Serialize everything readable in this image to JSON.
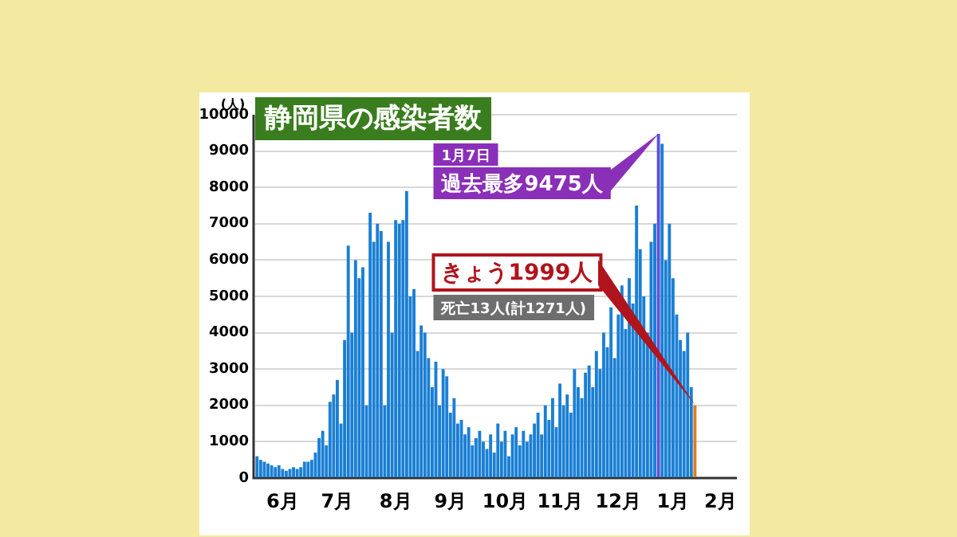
{
  "chart_data": {
    "type": "bar",
    "title": "静岡県の感染者数",
    "ylabel": "(人)",
    "categories": [
      null,
      null,
      null,
      null,
      null,
      null,
      null,
      "6月",
      null,
      null,
      null,
      null,
      null,
      null,
      null,
      null,
      null,
      null,
      null,
      null,
      null,
      null,
      "7月",
      null,
      null,
      null,
      null,
      null,
      null,
      null,
      null,
      null,
      null,
      null,
      null,
      null,
      null,
      null,
      "8月",
      null,
      null,
      null,
      null,
      null,
      null,
      null,
      null,
      null,
      null,
      null,
      null,
      null,
      null,
      "9月",
      null,
      null,
      null,
      null,
      null,
      null,
      null,
      null,
      null,
      null,
      null,
      null,
      null,
      null,
      "10月",
      null,
      null,
      null,
      null,
      null,
      null,
      null,
      null,
      null,
      null,
      null,
      null,
      null,
      null,
      "11月",
      null,
      null,
      null,
      null,
      null,
      null,
      null,
      null,
      null,
      null,
      null,
      null,
      null,
      null,
      null,
      "12月",
      null,
      null,
      null,
      null,
      null,
      null,
      null,
      null,
      null,
      null,
      null,
      null,
      null,
      null,
      "1月",
      null,
      null,
      null,
      null,
      null,
      null,
      null,
      null,
      null,
      null,
      null,
      null,
      "2月",
      null,
      null,
      null,
      null
    ],
    "values": [
      600,
      500,
      450,
      400,
      350,
      300,
      350,
      250,
      200,
      250,
      300,
      250,
      300,
      450,
      450,
      500,
      700,
      1100,
      1300,
      900,
      2100,
      2300,
      2700,
      1500,
      3800,
      6400,
      4000,
      6000,
      5500,
      5800,
      2000,
      7300,
      6500,
      7000,
      6800,
      2000,
      6500,
      4000,
      7100,
      7000,
      7100,
      7900,
      5000,
      5200,
      3500,
      4200,
      4000,
      3300,
      2500,
      3200,
      2000,
      3000,
      2800,
      1800,
      2200,
      1500,
      1600,
      1200,
      1400,
      900,
      1100,
      1300,
      1000,
      800,
      1200,
      700,
      1500,
      1000,
      1300,
      600,
      1200,
      1400,
      900,
      1300,
      1000,
      1200,
      1500,
      1800,
      1200,
      2000,
      1600,
      2200,
      1400,
      2600,
      2000,
      2300,
      1800,
      3000,
      2500,
      2200,
      2900,
      3100,
      2500,
      3500,
      3000,
      4000,
      3600,
      4700,
      3300,
      4500,
      5300,
      4100,
      5500,
      4800,
      7500,
      6300,
      5000,
      4000,
      6500,
      7000,
      9475,
      9200,
      6000,
      7000,
      5500,
      4500,
      3800,
      3500,
      4000,
      2500,
      1999,
      null,
      null,
      null,
      null,
      null,
      null,
      null,
      null,
      null,
      null,
      null
    ],
    "colors": [
      "#1a7fd4",
      "#1a7fd4",
      "#1a7fd4",
      "#1a7fd4",
      "#1a7fd4",
      "#1a7fd4",
      "#1a7fd4",
      "#1a7fd4",
      "#1a7fd4",
      "#1a7fd4",
      "#1a7fd4",
      "#1a7fd4",
      "#1a7fd4",
      "#1a7fd4",
      "#1a7fd4",
      "#1a7fd4",
      "#1a7fd4",
      "#1a7fd4",
      "#1a7fd4",
      "#1a7fd4",
      "#1a7fd4",
      "#1a7fd4",
      "#1a7fd4",
      "#1a7fd4",
      "#1a7fd4",
      "#1a7fd4",
      "#1a7fd4",
      "#1a7fd4",
      "#1a7fd4",
      "#1a7fd4",
      "#1a7fd4",
      "#1a7fd4",
      "#1a7fd4",
      "#1a7fd4",
      "#1a7fd4",
      "#1a7fd4",
      "#1a7fd4",
      "#1a7fd4",
      "#1a7fd4",
      "#1a7fd4",
      "#1a7fd4",
      "#1a7fd4",
      "#1a7fd4",
      "#1a7fd4",
      "#1a7fd4",
      "#1a7fd4",
      "#1a7fd4",
      "#1a7fd4",
      "#1a7fd4",
      "#1a7fd4",
      "#1a7fd4",
      "#1a7fd4",
      "#1a7fd4",
      "#1a7fd4",
      "#1a7fd4",
      "#1a7fd4",
      "#1a7fd4",
      "#1a7fd4",
      "#1a7fd4",
      "#1a7fd4",
      "#1a7fd4",
      "#1a7fd4",
      "#1a7fd4",
      "#1a7fd4",
      "#1a7fd4",
      "#1a7fd4",
      "#1a7fd4",
      "#1a7fd4",
      "#1a7fd4",
      "#1a7fd4",
      "#1a7fd4",
      "#1a7fd4",
      "#1a7fd4",
      "#1a7fd4",
      "#1a7fd4",
      "#1a7fd4",
      "#1a7fd4",
      "#1a7fd4",
      "#1a7fd4",
      "#1a7fd4",
      "#1a7fd4",
      "#1a7fd4",
      "#1a7fd4",
      "#1a7fd4",
      "#1a7fd4",
      "#1a7fd4",
      "#1a7fd4",
      "#1a7fd4",
      "#1a7fd4",
      "#1a7fd4",
      "#1a7fd4",
      "#1a7fd4",
      "#1a7fd4",
      "#1a7fd4",
      "#1a7fd4",
      "#1a7fd4",
      "#1a7fd4",
      "#1a7fd4",
      "#1a7fd4",
      "#1a7fd4",
      "#1a7fd4",
      "#1a7fd4",
      "#1a7fd4",
      "#1a7fd4",
      "#1a7fd4",
      "#1a7fd4",
      "#1a7fd4",
      "#1a7fd4",
      "#1a7fd4",
      "#1a7fd4",
      "#5b4fd8",
      "#1a7fd4",
      "#1a7fd4",
      "#1a7fd4",
      "#1a7fd4",
      "#1a7fd4",
      "#1a7fd4",
      "#1a7fd4",
      "#1a7fd4",
      "#1a7fd4",
      "#e07b20",
      "#1a7fd4",
      "#1a7fd4",
      "#1a7fd4",
      "#1a7fd4",
      "#1a7fd4",
      "#1a7fd4",
      "#1a7fd4",
      "#1a7fd4",
      "#1a7fd4",
      "#1a7fd4",
      "#1a7fd4"
    ],
    "ylim": [
      0,
      10000
    ],
    "yticks": [
      0,
      1000,
      2000,
      3000,
      4000,
      5000,
      6000,
      7000,
      8000,
      9000,
      10000
    ],
    "grid": "y",
    "annotations": [
      "1月7日",
      "過去最多9475人",
      "きょう1999人",
      "死亡13人(計1271人)"
    ]
  }
}
